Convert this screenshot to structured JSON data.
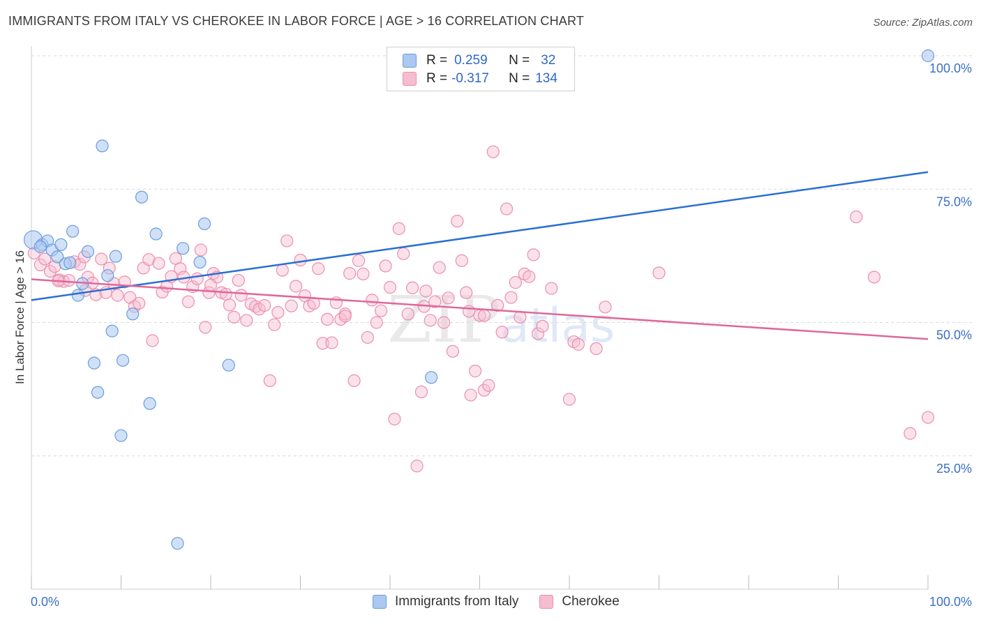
{
  "title": "IMMIGRANTS FROM ITALY VS CHEROKEE IN LABOR FORCE | AGE > 16 CORRELATION CHART",
  "source": "Source: ZipAtlas.com",
  "watermark": {
    "part1": "ZIP",
    "part2": "atlas"
  },
  "legend_top": {
    "rows": [
      {
        "r_label": "R =",
        "r_value": "0.259",
        "n_label": "N =",
        "n_value": "32"
      },
      {
        "r_label": "R =",
        "r_value": "-0.317",
        "n_label": "N =",
        "n_value": "134"
      }
    ]
  },
  "legend_bottom": {
    "items": [
      {
        "label": "Immigrants from Italy"
      },
      {
        "label": "Cherokee"
      }
    ]
  },
  "colors": {
    "blue_fill": "#aac8f0",
    "blue_stroke": "#6a9be0",
    "blue_line": "#2a6fd1",
    "pink_fill": "#f6bdd0",
    "pink_stroke": "#ea8fae",
    "pink_line": "#e0679a",
    "grid": "#d8d8d8",
    "tick_label": "#3a6fc4"
  },
  "chart_data": {
    "type": "scatter",
    "title": "IMMIGRANTS FROM ITALY VS CHEROKEE IN LABOR FORCE | AGE > 16 CORRELATION CHART",
    "xlabel": "",
    "ylabel": "In Labor Force | Age > 16",
    "xlim": [
      0,
      100
    ],
    "ylim": [
      0,
      105
    ],
    "x_tick_labels": [
      "0.0%",
      "100.0%"
    ],
    "y_ticks": [
      25,
      50,
      75,
      100
    ],
    "y_tick_labels": [
      "25.0%",
      "50.0%",
      "75.0%",
      "100.0%"
    ],
    "series": [
      {
        "name": "Immigrants from Italy",
        "R": 0.259,
        "N": 32,
        "trend": {
          "x": [
            0,
            100
          ],
          "y": [
            54.2,
            78.2
          ]
        },
        "points": [
          [
            0.2,
            65.5
          ],
          [
            1.2,
            64.6
          ],
          [
            1.8,
            65.3
          ],
          [
            1.0,
            64.2
          ],
          [
            2.3,
            63.6
          ],
          [
            2.9,
            62.3
          ],
          [
            3.3,
            64.6
          ],
          [
            3.8,
            61.0
          ],
          [
            4.3,
            61.2
          ],
          [
            4.6,
            67.1
          ],
          [
            5.2,
            55.1
          ],
          [
            5.7,
            57.3
          ],
          [
            6.3,
            63.3
          ],
          [
            7.4,
            36.9
          ],
          [
            7.0,
            42.4
          ],
          [
            7.9,
            83.1
          ],
          [
            8.5,
            58.8
          ],
          [
            9.0,
            48.4
          ],
          [
            9.4,
            62.4
          ],
          [
            10.0,
            28.8
          ],
          [
            10.2,
            42.9
          ],
          [
            11.3,
            51.6
          ],
          [
            12.3,
            73.5
          ],
          [
            13.2,
            34.8
          ],
          [
            13.9,
            66.6
          ],
          [
            16.3,
            8.6
          ],
          [
            16.9,
            63.9
          ],
          [
            18.8,
            61.3
          ],
          [
            19.3,
            68.5
          ],
          [
            22.0,
            42.0
          ],
          [
            44.6,
            39.7
          ],
          [
            100.0,
            100.0
          ]
        ]
      },
      {
        "name": "Cherokee",
        "R": -0.317,
        "N": 134,
        "trend": {
          "x": [
            0,
            100
          ],
          "y": [
            58.1,
            46.9
          ]
        },
        "points": [
          [
            0.3,
            63.0
          ],
          [
            1.0,
            60.8
          ],
          [
            1.5,
            61.9
          ],
          [
            2.1,
            59.6
          ],
          [
            2.6,
            60.5
          ],
          [
            3.1,
            58.0
          ],
          [
            3.6,
            57.7
          ],
          [
            4.2,
            57.9
          ],
          [
            4.8,
            61.4
          ],
          [
            5.4,
            60.9
          ],
          [
            5.9,
            62.3
          ],
          [
            6.3,
            58.5
          ],
          [
            6.8,
            57.4
          ],
          [
            7.2,
            55.2
          ],
          [
            7.8,
            61.9
          ],
          [
            8.3,
            55.6
          ],
          [
            8.7,
            60.2
          ],
          [
            9.2,
            57.3
          ],
          [
            9.6,
            55.1
          ],
          [
            10.4,
            57.6
          ],
          [
            11.0,
            54.7
          ],
          [
            11.5,
            53.0
          ],
          [
            12.0,
            53.6
          ],
          [
            12.5,
            60.2
          ],
          [
            13.1,
            61.8
          ],
          [
            13.5,
            46.6
          ],
          [
            14.2,
            61.1
          ],
          [
            14.6,
            55.7
          ],
          [
            15.1,
            56.8
          ],
          [
            15.6,
            58.6
          ],
          [
            16.1,
            62.0
          ],
          [
            16.6,
            60.1
          ],
          [
            17.0,
            58.5
          ],
          [
            17.5,
            53.9
          ],
          [
            18.0,
            56.7
          ],
          [
            18.5,
            58.2
          ],
          [
            18.9,
            63.6
          ],
          [
            19.4,
            49.1
          ],
          [
            19.8,
            55.6
          ],
          [
            20.3,
            59.2
          ],
          [
            20.7,
            58.5
          ],
          [
            21.2,
            55.6
          ],
          [
            21.7,
            55.3
          ],
          [
            22.1,
            53.3
          ],
          [
            22.6,
            51.0
          ],
          [
            23.1,
            57.9
          ],
          [
            23.4,
            55.1
          ],
          [
            24.0,
            50.4
          ],
          [
            24.5,
            53.5
          ],
          [
            25.0,
            53.0
          ],
          [
            25.4,
            52.5
          ],
          [
            26.0,
            53.2
          ],
          [
            26.6,
            39.1
          ],
          [
            27.1,
            49.6
          ],
          [
            27.5,
            51.9
          ],
          [
            28.0,
            59.8
          ],
          [
            28.5,
            65.3
          ],
          [
            29.0,
            53.1
          ],
          [
            29.5,
            56.8
          ],
          [
            30.0,
            61.7
          ],
          [
            30.5,
            55.0
          ],
          [
            31.0,
            53.1
          ],
          [
            31.5,
            53.6
          ],
          [
            32.0,
            60.1
          ],
          [
            32.5,
            46.1
          ],
          [
            33.0,
            50.6
          ],
          [
            33.5,
            46.2
          ],
          [
            34.0,
            53.7
          ],
          [
            34.5,
            50.6
          ],
          [
            35.0,
            51.6
          ],
          [
            35.5,
            59.2
          ],
          [
            36.0,
            39.1
          ],
          [
            36.5,
            61.6
          ],
          [
            37.0,
            59.1
          ],
          [
            37.5,
            47.2
          ],
          [
            38.0,
            54.2
          ],
          [
            38.5,
            50.0
          ],
          [
            39.0,
            52.2
          ],
          [
            39.5,
            60.6
          ],
          [
            40.0,
            56.6
          ],
          [
            40.5,
            31.9
          ],
          [
            41.0,
            67.6
          ],
          [
            41.5,
            62.9
          ],
          [
            42.0,
            51.6
          ],
          [
            42.5,
            56.5
          ],
          [
            43.0,
            23.1
          ],
          [
            43.5,
            37.0
          ],
          [
            44.0,
            55.9
          ],
          [
            44.5,
            50.4
          ],
          [
            45.0,
            53.9
          ],
          [
            45.5,
            60.3
          ],
          [
            46.0,
            50.0
          ],
          [
            46.5,
            54.6
          ],
          [
            47.0,
            44.6
          ],
          [
            47.5,
            69.0
          ],
          [
            48.0,
            61.6
          ],
          [
            48.5,
            55.6
          ],
          [
            49.0,
            36.4
          ],
          [
            49.5,
            40.9
          ],
          [
            50.0,
            51.3
          ],
          [
            50.5,
            37.3
          ],
          [
            51.0,
            38.2
          ],
          [
            51.5,
            82.0
          ],
          [
            52.0,
            53.2
          ],
          [
            52.5,
            48.2
          ],
          [
            53.0,
            71.3
          ],
          [
            53.5,
            54.7
          ],
          [
            54.0,
            57.5
          ],
          [
            54.5,
            51.0
          ],
          [
            55.0,
            59.1
          ],
          [
            55.5,
            58.6
          ],
          [
            56.0,
            62.7
          ],
          [
            56.5,
            47.9
          ],
          [
            57.0,
            49.3
          ],
          [
            60.0,
            35.6
          ],
          [
            60.5,
            46.4
          ],
          [
            61.0,
            45.9
          ],
          [
            63.0,
            45.1
          ],
          [
            64.0,
            52.9
          ],
          [
            70.0,
            59.3
          ],
          [
            92.0,
            69.8
          ],
          [
            94.0,
            58.5
          ],
          [
            98.0,
            29.2
          ],
          [
            100.0,
            32.2
          ],
          [
            3.0,
            57.8
          ],
          [
            6.0,
            56.0
          ],
          [
            20.0,
            57.0
          ],
          [
            35.0,
            51.2
          ],
          [
            43.8,
            53.0
          ],
          [
            48.8,
            52.1
          ],
          [
            50.5,
            51.3
          ],
          [
            58.0,
            56.4
          ]
        ]
      }
    ]
  }
}
